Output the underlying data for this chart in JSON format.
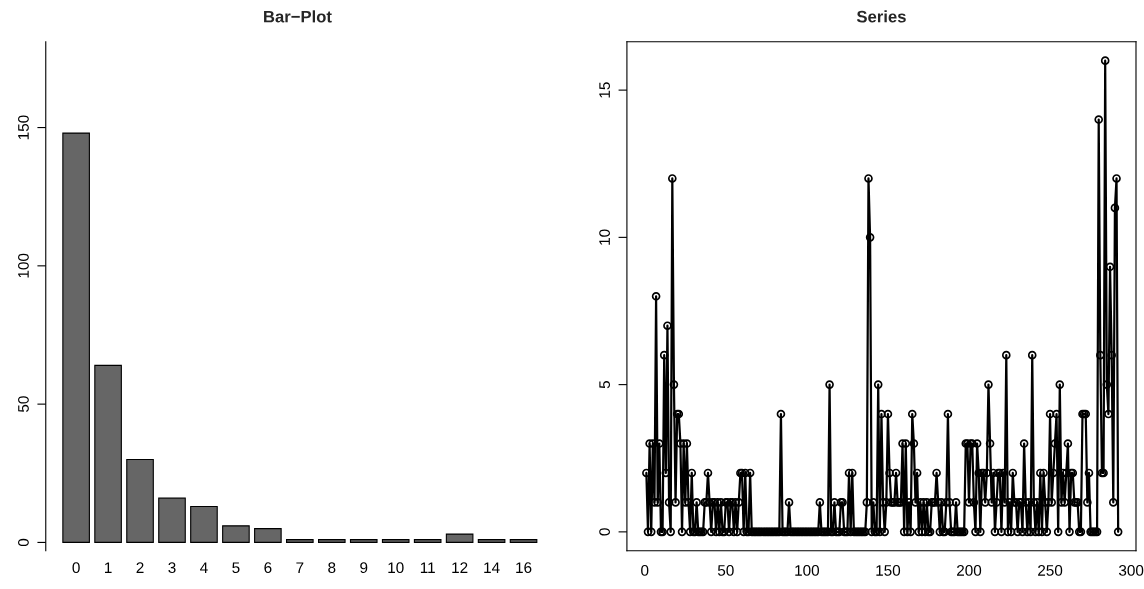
{
  "chart_data": [
    {
      "type": "bar",
      "title": "Bar−Plot",
      "categories": [
        "0",
        "1",
        "2",
        "3",
        "4",
        "5",
        "6",
        "7",
        "8",
        "9",
        "10",
        "11",
        "12",
        "14",
        "16"
      ],
      "values": [
        148,
        64,
        30,
        16,
        13,
        6,
        5,
        1,
        1,
        1,
        1,
        1,
        3,
        1,
        1
      ],
      "color": "#666666",
      "ylim": [
        -3,
        181
      ],
      "yticks": [
        0,
        50,
        100,
        150
      ]
    },
    {
      "type": "line",
      "title": "Series",
      "color": "#000000",
      "marker": "circle",
      "x": [
        1,
        2,
        3,
        4,
        5,
        6,
        7,
        8,
        9,
        10,
        11,
        12,
        13,
        14,
        15,
        16,
        17,
        18,
        19,
        20,
        21,
        22,
        23,
        24,
        25,
        26,
        27,
        28,
        29,
        30,
        31,
        32,
        33,
        34,
        35,
        36,
        37,
        38,
        39,
        40,
        41,
        42,
        43,
        44,
        45,
        46,
        47,
        48,
        49,
        50,
        51,
        52,
        53,
        54,
        55,
        56,
        57,
        58,
        59,
        60,
        61,
        62,
        63,
        64,
        65,
        66,
        67,
        68,
        69,
        70,
        71,
        72,
        73,
        74,
        75,
        76,
        77,
        78,
        79,
        80,
        81,
        82,
        83,
        84,
        85,
        86,
        87,
        88,
        89,
        90,
        91,
        92,
        93,
        94,
        95,
        96,
        97,
        98,
        99,
        100,
        101,
        102,
        103,
        104,
        105,
        106,
        107,
        108,
        109,
        110,
        111,
        112,
        113,
        114,
        115,
        116,
        117,
        118,
        119,
        120,
        121,
        122,
        123,
        124,
        125,
        126,
        127,
        128,
        129,
        130,
        131,
        132,
        133,
        134,
        135,
        136,
        137,
        138,
        139,
        140,
        141,
        142,
        143,
        144,
        145,
        146,
        147,
        148,
        149,
        150,
        151,
        152,
        153,
        154,
        155,
        156,
        157,
        158,
        159,
        160,
        161,
        162,
        163,
        164,
        165,
        166,
        167,
        168,
        169,
        170,
        171,
        172,
        173,
        174,
        175,
        176,
        177,
        178,
        179,
        180,
        181,
        182,
        183,
        184,
        185,
        186,
        187,
        188,
        189,
        190,
        191,
        192,
        193,
        194,
        195,
        196,
        197,
        198,
        199,
        200,
        201,
        202,
        203,
        204,
        205,
        206,
        207,
        208,
        209,
        210,
        211,
        212,
        213,
        214,
        215,
        216,
        217,
        218,
        219,
        220,
        221,
        222,
        223,
        224,
        225,
        226,
        227,
        228,
        229,
        230,
        231,
        232,
        233,
        234,
        235,
        236,
        237,
        238,
        239,
        240,
        241,
        242,
        243,
        244,
        245,
        246,
        247,
        248,
        249,
        250,
        251,
        252,
        253,
        254,
        255,
        256,
        257,
        258,
        259,
        260,
        261,
        262,
        263,
        264,
        265,
        266,
        267,
        268,
        269,
        270,
        271,
        272,
        273,
        274,
        275,
        276,
        277,
        278,
        279,
        280,
        281,
        282,
        283,
        284,
        285,
        286,
        287,
        288,
        289,
        290,
        291,
        292
      ],
      "values": [
        2,
        0,
        3,
        0,
        3,
        1,
        8,
        1,
        3,
        0,
        0,
        6,
        2,
        7,
        1,
        0,
        12,
        5,
        1,
        4,
        4,
        3,
        0,
        3,
        1,
        3,
        1,
        0,
        2,
        0,
        0,
        1,
        0,
        0,
        0,
        0,
        1,
        1,
        2,
        1,
        0,
        1,
        1,
        0,
        1,
        0,
        1,
        0,
        0,
        1,
        1,
        0,
        1,
        1,
        0,
        1,
        0,
        1,
        2,
        2,
        0,
        2,
        0,
        0,
        2,
        0,
        0,
        0,
        0,
        0,
        0,
        0,
        0,
        0,
        0,
        0,
        0,
        0,
        0,
        0,
        0,
        0,
        0,
        4,
        0,
        0,
        0,
        0,
        1,
        0,
        0,
        0,
        0,
        0,
        0,
        0,
        0,
        0,
        0,
        0,
        0,
        0,
        0,
        0,
        0,
        0,
        0,
        1,
        0,
        0,
        0,
        0,
        0,
        5,
        0,
        0,
        1,
        0,
        0,
        0,
        1,
        1,
        0,
        0,
        0,
        2,
        0,
        2,
        0,
        0,
        0,
        0,
        0,
        0,
        0,
        0,
        1,
        12,
        10,
        0,
        1,
        0,
        0,
        5,
        0,
        4,
        1,
        0,
        1,
        4,
        2,
        1,
        1,
        1,
        2,
        1,
        1,
        1,
        3,
        0,
        3,
        0,
        1,
        0,
        4,
        3,
        1,
        2,
        0,
        1,
        0,
        1,
        0,
        1,
        0,
        0,
        1,
        1,
        1,
        2,
        1,
        0,
        1,
        0,
        0,
        1,
        4,
        1,
        0,
        0,
        0,
        1,
        0,
        0,
        0,
        0,
        0,
        3,
        3,
        1,
        3,
        3,
        1,
        0,
        3,
        2,
        0,
        2,
        2,
        1,
        2,
        5,
        3,
        1,
        2,
        0,
        1,
        2,
        2,
        0,
        2,
        1,
        6,
        0,
        1,
        0,
        2,
        1,
        1,
        0,
        1,
        1,
        0,
        3,
        1,
        0,
        1,
        0,
        6,
        1,
        0,
        1,
        0,
        2,
        0,
        2,
        1,
        0,
        1,
        4,
        1,
        2,
        3,
        4,
        0,
        5,
        1,
        2,
        1,
        2,
        3,
        0,
        2,
        2,
        1,
        1,
        1,
        0,
        0,
        4,
        4,
        4,
        1,
        2,
        0,
        0,
        0,
        0,
        0,
        14,
        6,
        2,
        2,
        16,
        5,
        4,
        9,
        6,
        1,
        11,
        12,
        0
      ],
      "xlim": [
        -11,
        303
      ],
      "xticks": [
        0,
        50,
        100,
        150,
        200,
        250,
        300
      ],
      "ylim": [
        -0.64,
        16.64
      ],
      "yticks": [
        0,
        5,
        10,
        15
      ]
    }
  ]
}
